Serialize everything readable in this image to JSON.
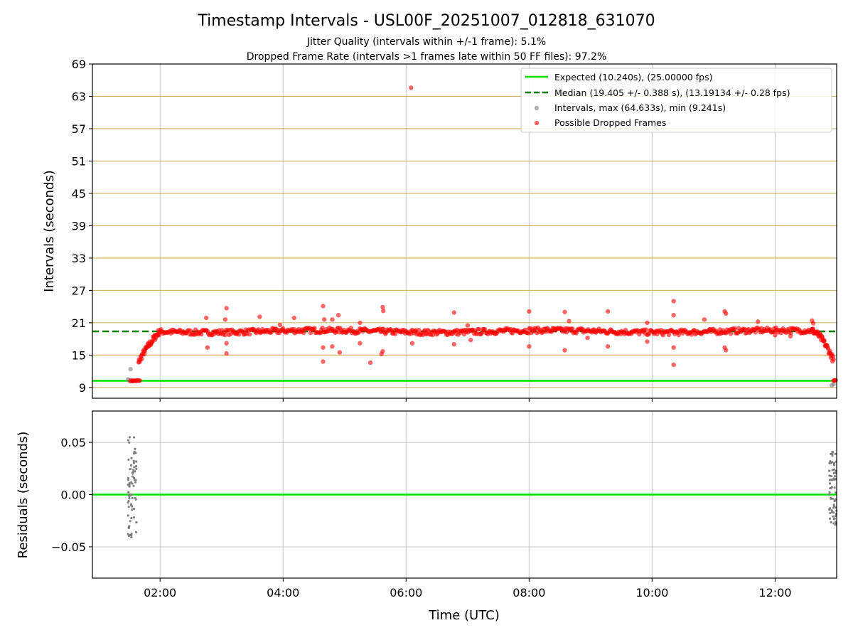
{
  "chart_data": {
    "type": "scatter",
    "title": "Timestamp Intervals - USL00F_20251007_012818_631070",
    "subtitles": [
      "Jitter Quality (intervals within +/-1 frame): 5.1%",
      "Dropped Frame Rate (intervals >1 frames late within 50 FF files): 97.2%"
    ],
    "xlabel": "Time (UTC)",
    "x_range_hours": [
      0.9,
      13.0
    ],
    "x_ticks_hours": [
      2,
      4,
      6,
      8,
      10,
      12
    ],
    "x_tick_labels": [
      "02:00",
      "04:00",
      "06:00",
      "08:00",
      "10:00",
      "12:00"
    ],
    "top_panel": {
      "ylabel": "Intervals (seconds)",
      "ylim": [
        7,
        69
      ],
      "y_ticks": [
        9,
        15,
        21,
        27,
        33,
        39,
        45,
        51,
        57,
        63,
        69
      ],
      "y_tick_labels": [
        "9",
        "15",
        "21",
        "27",
        "33",
        "39",
        "45",
        "51",
        "57",
        "63",
        "69"
      ],
      "expected_interval": 10.24,
      "median_interval": 19.405,
      "legend": [
        "Expected (10.240s), (25.00000 fps)",
        "Median (19.405 +/- 0.388 s), (13.19134 +/- 0.28 fps)",
        "Intervals, max (64.633s), min (9.241s)",
        "Possible Dropped Frames"
      ],
      "outlier_points": [
        [
          6.08,
          64.6
        ],
        [
          2.75,
          21.9
        ],
        [
          2.77,
          16.4
        ],
        [
          3.08,
          23.7
        ],
        [
          3.06,
          21.6
        ],
        [
          3.08,
          17.2
        ],
        [
          3.08,
          15.3
        ],
        [
          3.62,
          22.1
        ],
        [
          3.95,
          20.6
        ],
        [
          4.18,
          21.9
        ],
        [
          4.65,
          24.1
        ],
        [
          4.67,
          21.6
        ],
        [
          4.65,
          16.4
        ],
        [
          4.65,
          13.8
        ],
        [
          4.8,
          21.6
        ],
        [
          4.9,
          22.4
        ],
        [
          4.92,
          15.5
        ],
        [
          4.8,
          16.6
        ],
        [
          5.25,
          21.0
        ],
        [
          5.25,
          17.2
        ],
        [
          5.42,
          13.6
        ],
        [
          5.62,
          23.9
        ],
        [
          5.63,
          23.2
        ],
        [
          5.62,
          15.7
        ],
        [
          5.6,
          15.2
        ],
        [
          6.1,
          17.2
        ],
        [
          6.78,
          22.9
        ],
        [
          6.78,
          17.0
        ],
        [
          7.05,
          17.8
        ],
        [
          7.0,
          20.5
        ],
        [
          8.0,
          23.1
        ],
        [
          8.0,
          16.6
        ],
        [
          8.58,
          23.0
        ],
        [
          8.58,
          15.9
        ],
        [
          8.65,
          21.3
        ],
        [
          8.95,
          18.2
        ],
        [
          9.28,
          23.1
        ],
        [
          9.28,
          16.6
        ],
        [
          9.92,
          21.0
        ],
        [
          9.92,
          17.5
        ],
        [
          10.35,
          25.0
        ],
        [
          10.35,
          22.4
        ],
        [
          10.35,
          16.4
        ],
        [
          10.35,
          13.2
        ],
        [
          10.85,
          21.6
        ],
        [
          11.18,
          23.1
        ],
        [
          11.2,
          22.7
        ],
        [
          11.18,
          16.4
        ],
        [
          11.2,
          15.9
        ],
        [
          11.72,
          21.2
        ],
        [
          12.0,
          18.7
        ],
        [
          12.25,
          18.5
        ],
        [
          12.6,
          21.4
        ],
        [
          12.62,
          20.9
        ]
      ],
      "ramp_start": {
        "hours": [
          1.65,
          2.0
        ],
        "values": [
          13.5,
          19.5
        ]
      },
      "ramp_end": {
        "hours": [
          12.6,
          12.95
        ],
        "values": [
          19.5,
          14.0
        ]
      },
      "gray_points": [
        [
          1.48,
          10.5
        ],
        [
          1.5,
          10.3
        ],
        [
          1.52,
          12.4
        ],
        [
          1.55,
          10.2
        ],
        [
          12.92,
          9.4
        ],
        [
          12.95,
          9.6
        ]
      ]
    },
    "bottom_panel": {
      "ylabel": "Residuals (seconds)",
      "ylim": [
        -0.08,
        0.08
      ],
      "y_ticks": [
        0.05,
        0.0,
        -0.05
      ],
      "y_tick_labels": [
        "0.05",
        "0.00",
        "−0.05"
      ],
      "zero_line": 0.0,
      "clusters": [
        {
          "hours_range": [
            1.48,
            1.62
          ],
          "min": -0.042,
          "max": 0.058
        },
        {
          "hours_range": [
            12.88,
            13.0
          ],
          "min": -0.03,
          "max": 0.042
        }
      ]
    },
    "colors": {
      "expected": "#00e000",
      "median": "#008000",
      "dropped": "#ff0000",
      "intervals": "#808080",
      "hgrid_top": "#c8a040",
      "grid": "#b0b0b0"
    }
  }
}
